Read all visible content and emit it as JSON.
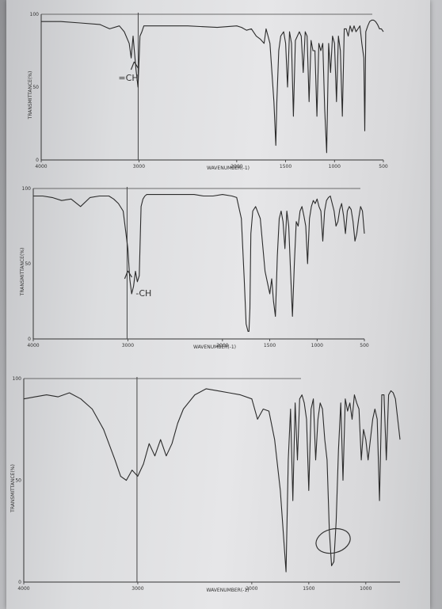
{
  "chart_data": [
    {
      "type": "line",
      "x_ticks": [
        "4000",
        "3000",
        "2000",
        "1500",
        "1000",
        "500"
      ],
      "y_ticks": [
        "100",
        "50",
        "0"
      ],
      "xlabel": "WAVENUMBER(-1)",
      "ylabel": "TRANSMITTANCE(%)",
      "xlim": [
        4000,
        500
      ],
      "ylim": [
        0,
        100
      ],
      "annotation": "=CH",
      "annotation_x": 3000,
      "series": [
        {
          "x": [
            4000,
            3800,
            3600,
            3400,
            3300,
            3200,
            3150,
            3100,
            3080,
            3060,
            3030,
            3010,
            2990,
            2970,
            2950,
            2900,
            2800,
            2500,
            2200,
            2000,
            1950,
            1900,
            1850,
            1800,
            1760,
            1720,
            1700,
            1680,
            1660,
            1640,
            1620,
            1600,
            1590,
            1570,
            1550,
            1520,
            1500,
            1480,
            1460,
            1440,
            1420,
            1400,
            1380,
            1360,
            1340,
            1320,
            1300,
            1280,
            1260,
            1240,
            1220,
            1200,
            1180,
            1160,
            1140,
            1120,
            1100,
            1080,
            1060,
            1040,
            1020,
            1000,
            980,
            960,
            940,
            920,
            900,
            880,
            860,
            840,
            820,
            800,
            780,
            760,
            740,
            720,
            700,
            690,
            680,
            660,
            640,
            620,
            600,
            580,
            560,
            540,
            520,
            500
          ],
          "y": [
            95,
            95,
            94,
            93,
            90,
            92,
            88,
            80,
            70,
            85,
            62,
            50,
            85,
            88,
            92,
            92,
            92,
            92,
            91,
            92,
            91,
            89,
            90,
            85,
            83,
            80,
            90,
            85,
            80,
            60,
            40,
            10,
            40,
            75,
            85,
            88,
            80,
            50,
            88,
            80,
            30,
            82,
            85,
            88,
            85,
            60,
            88,
            85,
            40,
            82,
            75,
            75,
            30,
            80,
            75,
            80,
            35,
            5,
            80,
            60,
            85,
            80,
            40,
            85,
            75,
            30,
            90,
            90,
            85,
            92,
            88,
            92,
            88,
            90,
            92,
            80,
            70,
            20,
            88,
            92,
            95,
            96,
            96,
            95,
            93,
            90,
            90,
            88
          ]
        }
      ]
    },
    {
      "type": "line",
      "x_ticks": [
        "4000",
        "3000",
        "2000",
        "1500",
        "1000",
        "500"
      ],
      "y_ticks": [
        "100",
        "50",
        "0"
      ],
      "xlabel": "WAVENUMBER(-1)",
      "ylabel": "TRANSMITTANCE(%)",
      "xlim": [
        4000,
        500
      ],
      "ylim": [
        0,
        100
      ],
      "annotation": "-CH",
      "annotation_x": 2950,
      "series": [
        {
          "x": [
            4000,
            3900,
            3800,
            3700,
            3600,
            3500,
            3400,
            3300,
            3200,
            3150,
            3100,
            3050,
            3000,
            2980,
            2960,
            2940,
            2920,
            2900,
            2880,
            2860,
            2840,
            2820,
            2800,
            2700,
            2600,
            2500,
            2400,
            2300,
            2200,
            2100,
            2000,
            1900,
            1850,
            1800,
            1770,
            1750,
            1730,
            1720,
            1710,
            1700,
            1680,
            1650,
            1600,
            1550,
            1500,
            1480,
            1460,
            1440,
            1420,
            1400,
            1380,
            1360,
            1340,
            1320,
            1300,
            1280,
            1260,
            1240,
            1220,
            1200,
            1180,
            1160,
            1140,
            1120,
            1100,
            1080,
            1060,
            1040,
            1020,
            1000,
            980,
            960,
            940,
            920,
            900,
            880,
            860,
            840,
            820,
            800,
            780,
            760,
            740,
            720,
            700,
            680,
            660,
            640,
            620,
            600,
            580,
            560,
            540,
            520,
            500
          ],
          "y": [
            95,
            95,
            94,
            92,
            93,
            88,
            94,
            95,
            95,
            93,
            90,
            85,
            60,
            40,
            30,
            35,
            45,
            38,
            42,
            88,
            93,
            95,
            96,
            96,
            96,
            96,
            96,
            96,
            95,
            95,
            96,
            95,
            94,
            80,
            40,
            10,
            5,
            5,
            20,
            70,
            85,
            88,
            80,
            45,
            30,
            40,
            25,
            15,
            55,
            80,
            85,
            78,
            60,
            85,
            75,
            45,
            15,
            50,
            78,
            75,
            85,
            88,
            82,
            75,
            50,
            80,
            88,
            92,
            90,
            93,
            88,
            85,
            65,
            85,
            92,
            94,
            95,
            90,
            85,
            75,
            78,
            86,
            90,
            82,
            70,
            85,
            88,
            86,
            78,
            65,
            70,
            80,
            88,
            85,
            70
          ]
        }
      ]
    },
    {
      "type": "line",
      "x_ticks": [
        "4000",
        "3000",
        "2000",
        "1500",
        "1000"
      ],
      "y_ticks": [
        "100",
        "50",
        "0"
      ],
      "xlabel": "WAVENUMBER(-1)",
      "ylabel": "TRANSMITTANCE(%)",
      "xlim": [
        4000,
        700
      ],
      "ylim": [
        0,
        100
      ],
      "series": [
        {
          "x": [
            4000,
            3900,
            3800,
            3700,
            3600,
            3500,
            3400,
            3300,
            3200,
            3150,
            3100,
            3050,
            3000,
            2950,
            2900,
            2850,
            2800,
            2750,
            2700,
            2650,
            2600,
            2500,
            2400,
            2300,
            2200,
            2100,
            2000,
            1950,
            1900,
            1850,
            1800,
            1750,
            1700,
            1680,
            1660,
            1640,
            1620,
            1600,
            1580,
            1560,
            1540,
            1520,
            1500,
            1480,
            1460,
            1440,
            1420,
            1400,
            1380,
            1360,
            1340,
            1320,
            1300,
            1280,
            1260,
            1240,
            1220,
            1200,
            1180,
            1160,
            1140,
            1120,
            1100,
            1080,
            1060,
            1040,
            1020,
            1000,
            980,
            960,
            940,
            920,
            900,
            880,
            860,
            840,
            820,
            800,
            780,
            760,
            740,
            720,
            700
          ],
          "y": [
            90,
            91,
            92,
            91,
            93,
            90,
            85,
            75,
            60,
            52,
            50,
            55,
            52,
            58,
            68,
            62,
            70,
            62,
            68,
            78,
            85,
            92,
            95,
            94,
            93,
            92,
            90,
            80,
            85,
            84,
            70,
            45,
            5,
            60,
            85,
            40,
            88,
            60,
            90,
            92,
            88,
            80,
            45,
            85,
            90,
            60,
            80,
            88,
            85,
            70,
            60,
            25,
            8,
            10,
            30,
            65,
            88,
            50,
            90,
            84,
            88,
            80,
            92,
            88,
            85,
            60,
            75,
            70,
            60,
            70,
            80,
            85,
            80,
            40,
            92,
            92,
            60,
            92,
            94,
            93,
            90,
            80,
            70
          ]
        }
      ]
    }
  ]
}
